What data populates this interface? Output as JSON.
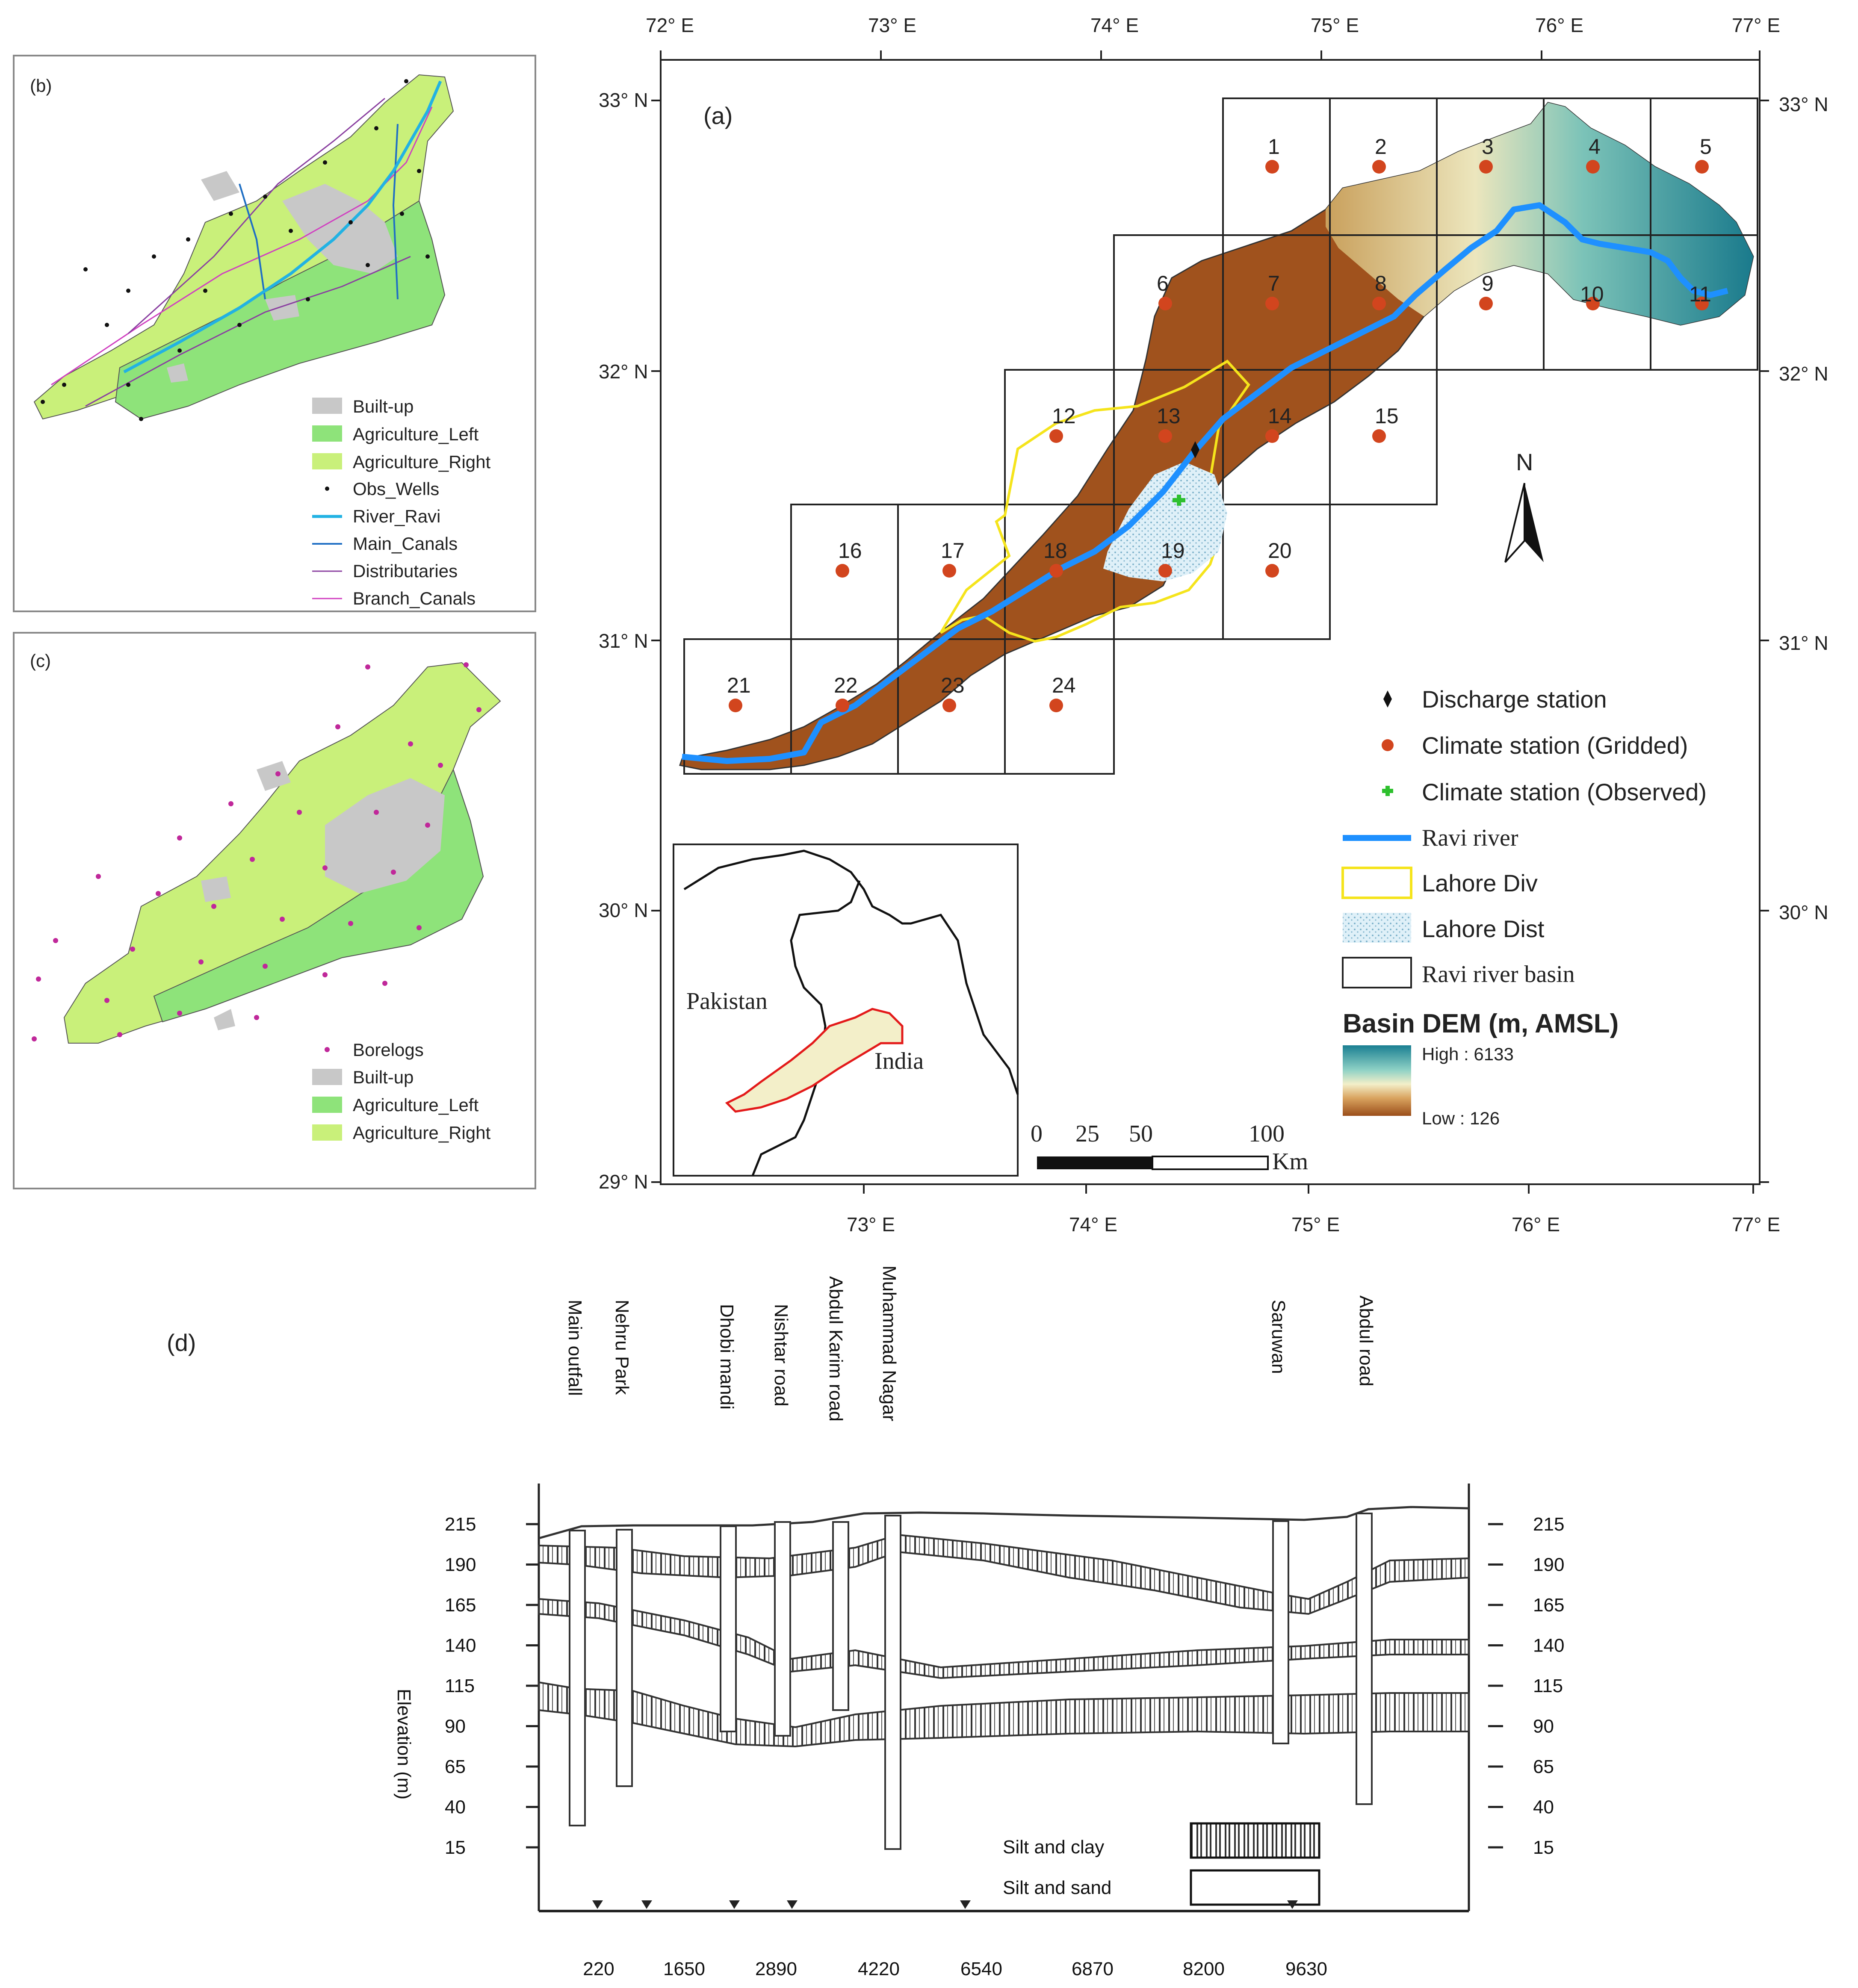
{
  "panels": {
    "a": "(a)",
    "b": "(b)",
    "c": "(c)",
    "d": "(d)"
  },
  "map_a": {
    "lon_labels": [
      "72° E",
      "73° E",
      "74° E",
      "75° E",
      "76° E",
      "77° E"
    ],
    "lat_labels": [
      "33° N",
      "32° N",
      "31° N",
      "30° N",
      "29° N"
    ],
    "grid_cells": [
      "1",
      "2",
      "3",
      "4",
      "5",
      "6",
      "7",
      "8",
      "9",
      "10",
      "11",
      "12",
      "13",
      "14",
      "15",
      "16",
      "17",
      "18",
      "19",
      "20",
      "21",
      "22",
      "23",
      "24"
    ],
    "north": "N",
    "legend": {
      "discharge": "Discharge station",
      "gridded": "Climate station (Gridded)",
      "observed": "Climate station (Observed)",
      "river": "Ravi river",
      "div": "Lahore Div",
      "dist": "Lahore Dist",
      "basin": "Ravi river basin",
      "dem_title": "Basin DEM (m, AMSL)",
      "high": "High : 6133",
      "low": "Low : 126"
    },
    "inset": {
      "pakistan": "Pakistan",
      "india": "India"
    },
    "scale": {
      "t0": "0",
      "t25": "25",
      "t50": "50",
      "t100": "100",
      "unit": "Km"
    },
    "colors": {
      "basin": "#a0521d",
      "river": "#1e90ff",
      "station": "#d2451e",
      "div": "#f5e41c",
      "dist": "#cde8f5"
    }
  },
  "map_b": {
    "legend": [
      "Built-up",
      "Agriculture_Left",
      "Agriculture_Right",
      "Obs_Wells",
      "River_Ravi",
      "Main_Canals",
      "Distributaries",
      "Branch_Canals"
    ],
    "colors": {
      "builtup": "#c8c8c8",
      "left": "#8ee37a",
      "right": "#c9f07a",
      "river": "#22b2e3",
      "canal": "#1f6fc4",
      "distrib": "#8a3fa0",
      "branch": "#d040c0"
    }
  },
  "map_c": {
    "legend": [
      "Borelogs",
      "Built-up",
      "Agriculture_Left",
      "Agriculture_Right"
    ],
    "colors": {
      "bore": "#c0289a"
    }
  },
  "section_d": {
    "ylabel": "Elevation (m)",
    "y_ticks": [
      "215",
      "190",
      "165",
      "140",
      "115",
      "90",
      "65",
      "40",
      "15"
    ],
    "x_ticks": [
      "220",
      "1650",
      "2890",
      "4220",
      "6540",
      "6870",
      "8200",
      "9630"
    ],
    "boreholes": [
      "Main outfall",
      "Nehru Park",
      "Dhobi mandi",
      "Nishtar road",
      "Abdul Karim road",
      "Muhammad Nagar",
      "Saruwan",
      "Abdul road"
    ],
    "legend": {
      "clay": "Silt and clay",
      "sand": "Silt and sand"
    }
  }
}
